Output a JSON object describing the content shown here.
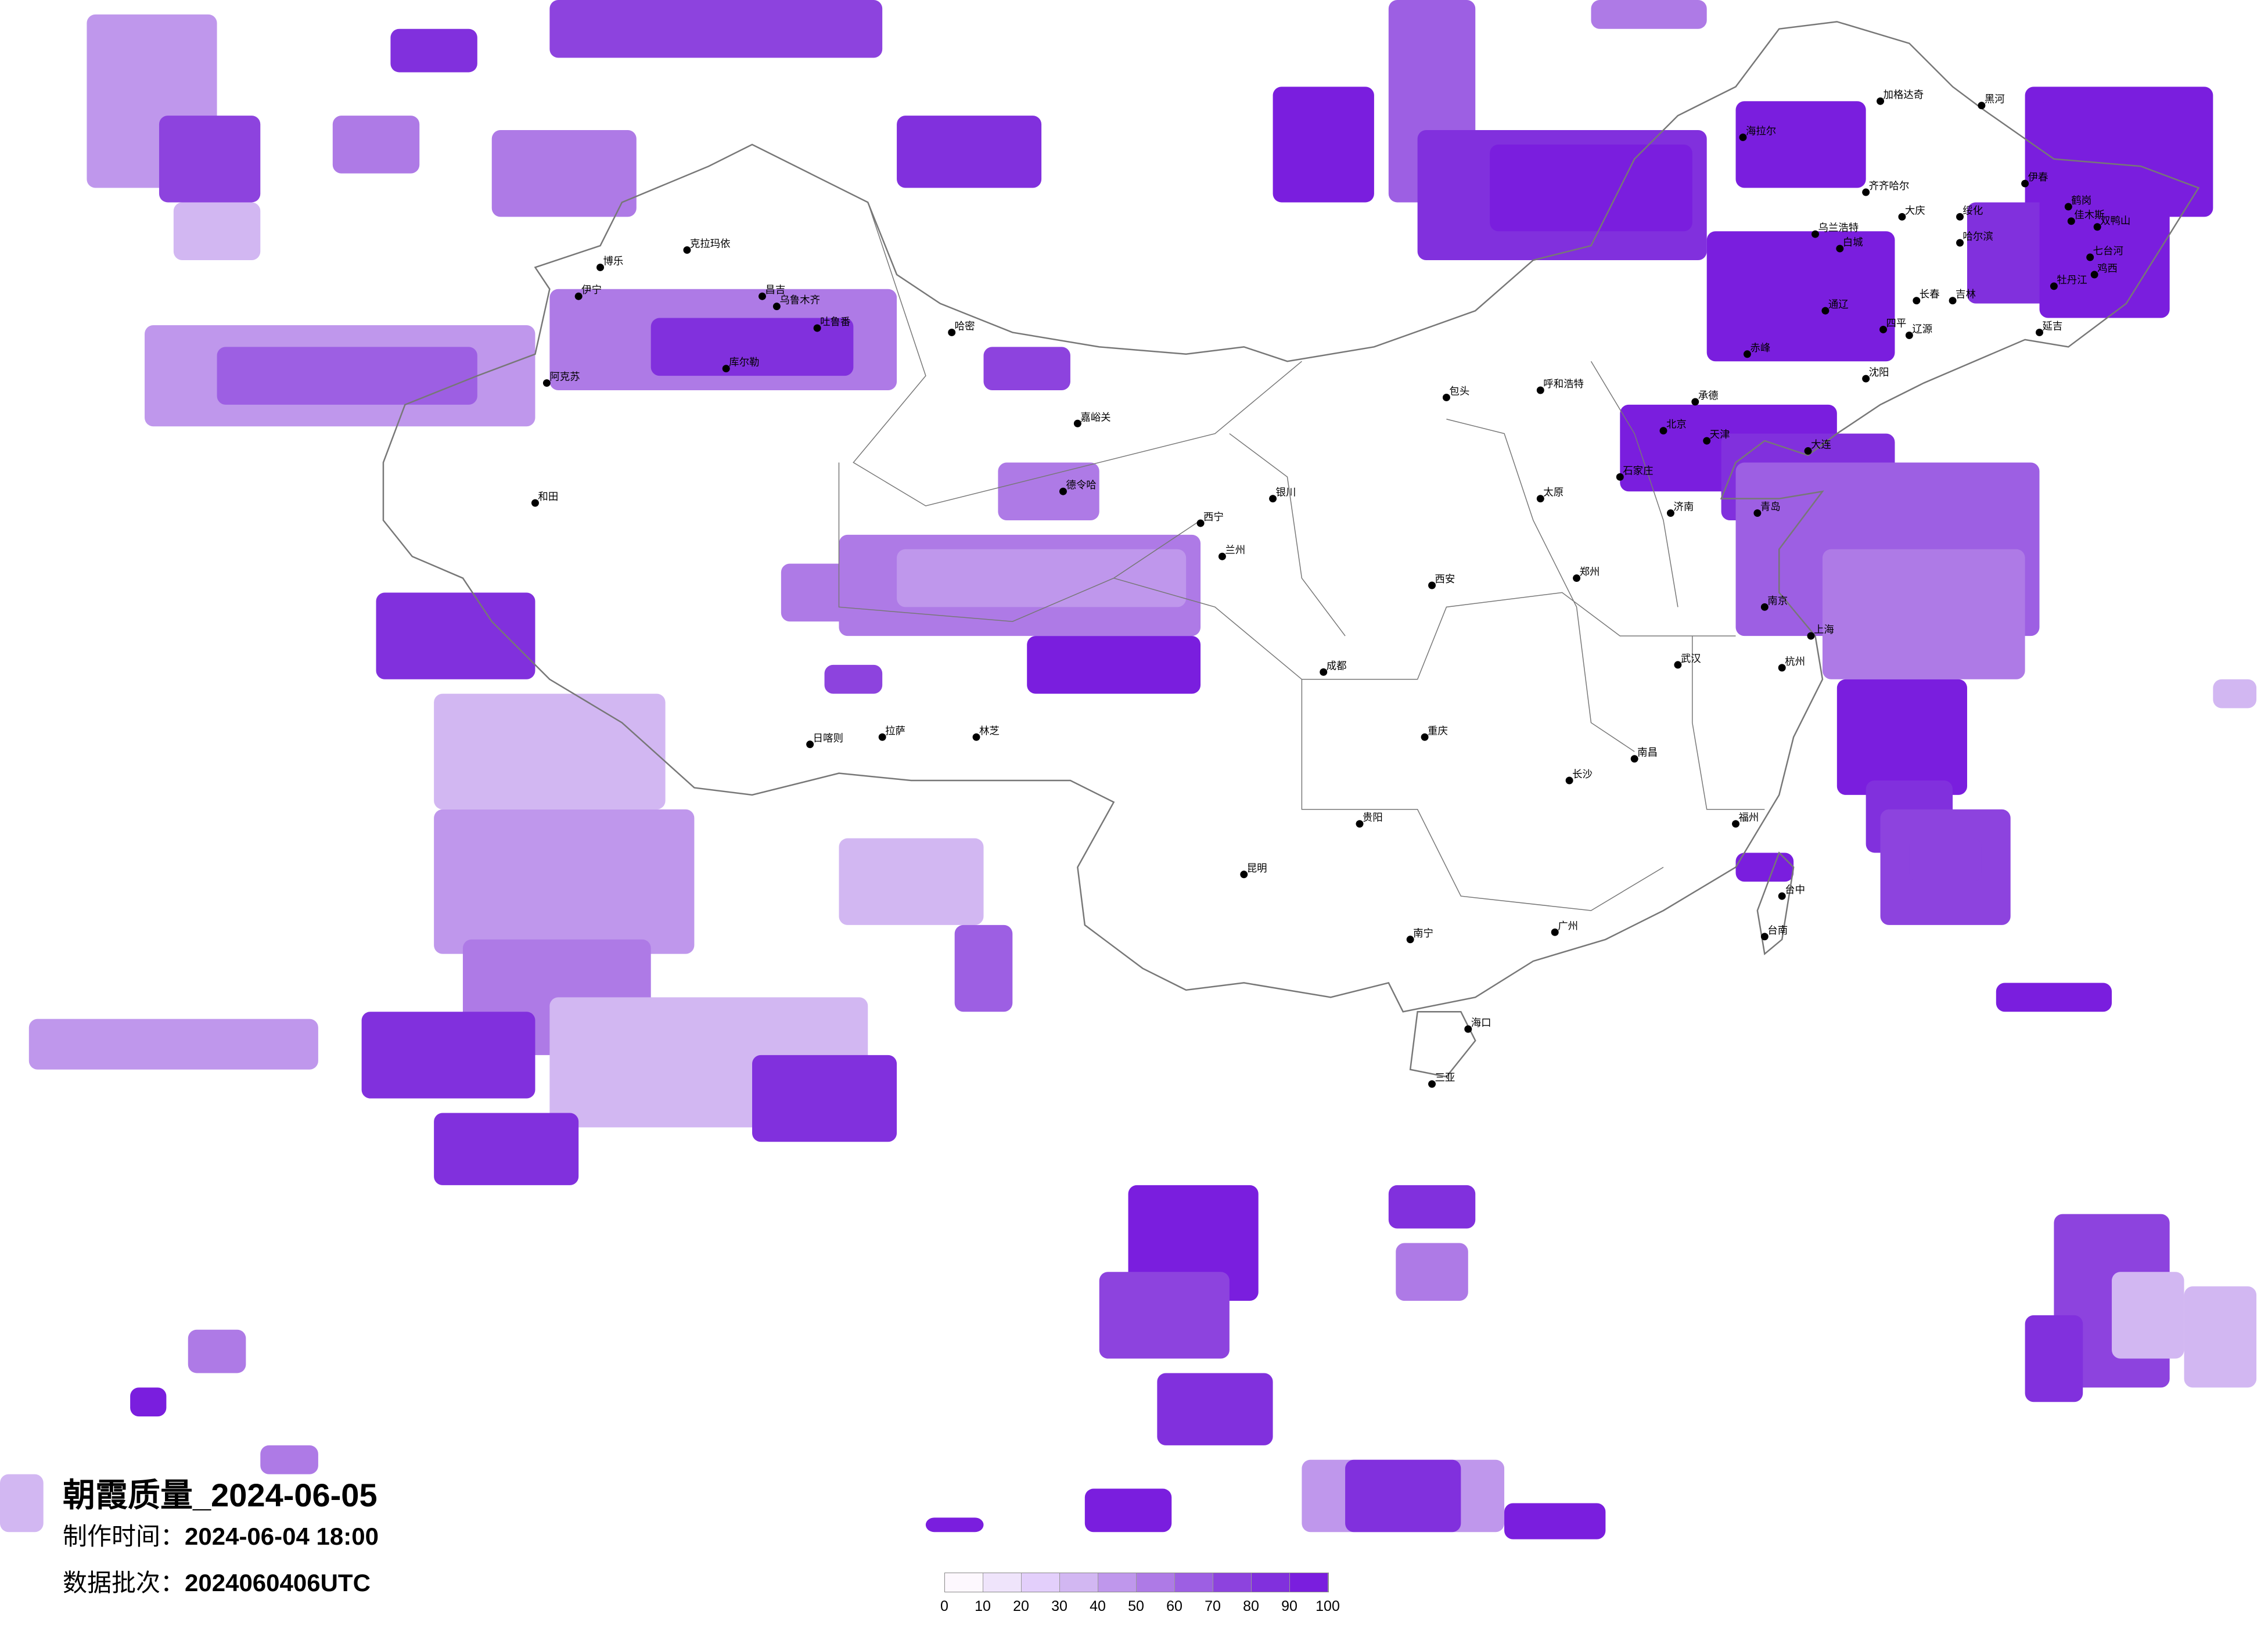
{
  "title": "朝霞质量_2024-06-05",
  "production_time": {
    "label": "制作时间：",
    "value": "2024-06-04 18:00"
  },
  "data_batch": {
    "label": "数据批次：",
    "value": "2024060406UTC"
  },
  "legend": {
    "ticks": [
      "0",
      "10",
      "20",
      "30",
      "40",
      "50",
      "60",
      "70",
      "80",
      "90",
      "100"
    ],
    "colors": [
      "#fdf8fe",
      "#efe4fb",
      "#e3cffb",
      "#d2b7f2",
      "#bf97ec",
      "#ae7ae6",
      "#9d5fe3",
      "#8d43de",
      "#8130dd",
      "#7a1ede"
    ]
  },
  "map": {
    "boundary_color": "#777777",
    "city_marker_color": "#000000",
    "cities": [
      "加格达奇",
      "黑河",
      "海拉尔",
      "齐齐哈尔",
      "伊春",
      "大庆",
      "绥化",
      "哈尔滨",
      "鹤岗",
      "佳木斯",
      "双鸭山",
      "七台河",
      "鸡西",
      "牡丹江",
      "乌兰浩特",
      "白城",
      "长春",
      "吉林",
      "通辽",
      "四平",
      "辽源",
      "延吉",
      "赤峰",
      "沈阳",
      "承德",
      "克拉玛依",
      "博乐",
      "伊宁",
      "昌吉",
      "乌鲁木齐",
      "吐鲁番",
      "哈密",
      "库尔勒",
      "阿克苏",
      "和田",
      "嘉峪关",
      "德令哈",
      "西宁",
      "兰州",
      "银川",
      "呼和浩特",
      "包头",
      "北京",
      "天津",
      "石家庄",
      "太原",
      "济南",
      "青岛",
      "大连",
      "郑州",
      "西安",
      "成都",
      "重庆",
      "武汉",
      "南京",
      "上海",
      "杭州",
      "长沙",
      "南昌",
      "福州",
      "广州",
      "南宁",
      "贵阳",
      "昆明",
      "拉萨",
      "日喀则",
      "林芝",
      "海口",
      "三亚",
      "台中",
      "台南"
    ]
  }
}
